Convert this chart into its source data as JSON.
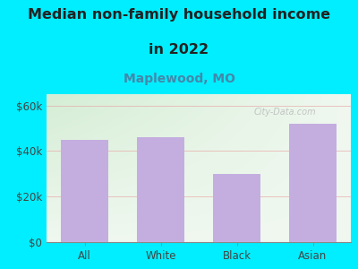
{
  "title_line1": "Median non-family household income",
  "title_line2": "in 2022",
  "subtitle": "Maplewood, MO",
  "categories": [
    "All",
    "White",
    "Black",
    "Asian"
  ],
  "values": [
    45000,
    46000,
    30000,
    52000
  ],
  "bar_color": "#c4aee0",
  "background_outer": "#00eeff",
  "grad_top_left": "#d4edd4",
  "grad_bottom_right": "#f0f8f0",
  "yticks": [
    0,
    20000,
    40000,
    60000
  ],
  "ytick_labels": [
    "$0",
    "$20k",
    "$40k",
    "$60k"
  ],
  "ylim": [
    0,
    65000
  ],
  "watermark": "City-Data.com",
  "title_fontsize": 11.5,
  "subtitle_fontsize": 10,
  "tick_fontsize": 8.5,
  "title_color": "#222222",
  "subtitle_color": "#4488aa"
}
